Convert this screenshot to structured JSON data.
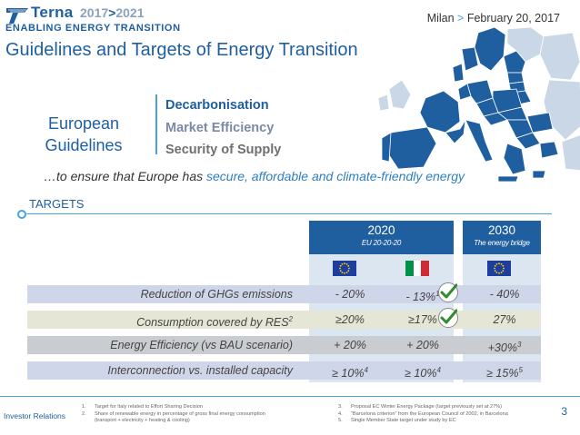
{
  "header": {
    "logo_name": "Terna",
    "logo_years_start": "2017",
    "logo_years_sep": ">",
    "logo_years_end": "2021",
    "logo_tagline": "ENABLING ENERGY TRANSITION",
    "location": "Milan",
    "date_sep": ">",
    "date": "February 20, 2017"
  },
  "title": "Guidelines and Targets of Energy Transition",
  "guidelines": {
    "label_line1": "European",
    "label_line2": "Guidelines",
    "items": [
      "Decarbonisation",
      "Market Efficiency",
      "Security of Supply"
    ]
  },
  "ensure": {
    "prefix": "…to ensure that Europe has ",
    "highlight": "secure, affordable and climate-friendly energy"
  },
  "targets_label": "TARGETS",
  "columns": {
    "c2020": {
      "year": "2020",
      "sub": "EU 20-20-20"
    },
    "c2030": {
      "year": "2030",
      "sub": "The energy bridge"
    }
  },
  "rows": [
    {
      "label": "Reduction of GHGs emissions",
      "v1": "- 20%",
      "v2": "- 13%",
      "v2_sup": "1",
      "v3": "-  40%"
    },
    {
      "label": "Consumption covered by RES",
      "label_sup": "2",
      "v1": "≥20%",
      "v2": "≥17%",
      "v3": "27%"
    },
    {
      "label": "Energy Efficiency (vs BAU scenario)",
      "v1": "+ 20%",
      "v2": "+ 20%",
      "v3": "+30%",
      "v3_sup": "3"
    },
    {
      "label": "Interconnection vs. installed capacity",
      "v1": "≥ 10%",
      "v1_sup": "4",
      "v2": "≥ 10%",
      "v2_sup": "4",
      "v3": "≥ 15%",
      "v3_sup": "5"
    }
  ],
  "footer": {
    "investor_relations": "Investor Relations",
    "notes_left": [
      {
        "n": "1.",
        "text": "Target for Italy related to Effort Sharing Decision"
      },
      {
        "n": "2.",
        "text": "Share of renewable energy in percentage of gross final energy consumption"
      },
      {
        "n": "",
        "text": "(transport + electricity + heating & cooling)"
      }
    ],
    "notes_right": [
      {
        "n": "3.",
        "text": "Proposal EC Winter Energy Package (target previously set at 27%)"
      },
      {
        "n": "4.",
        "text": "“Barcelona criterion” from the European Council of 2002, in Barcelona"
      },
      {
        "n": "5.",
        "text": "Single Member State target under study by EC"
      }
    ],
    "page_number": "3"
  },
  "colors": {
    "brand_blue": "#1f5fa0",
    "accent_blue": "#4aa3df",
    "check_green": "#2e8b2e"
  }
}
